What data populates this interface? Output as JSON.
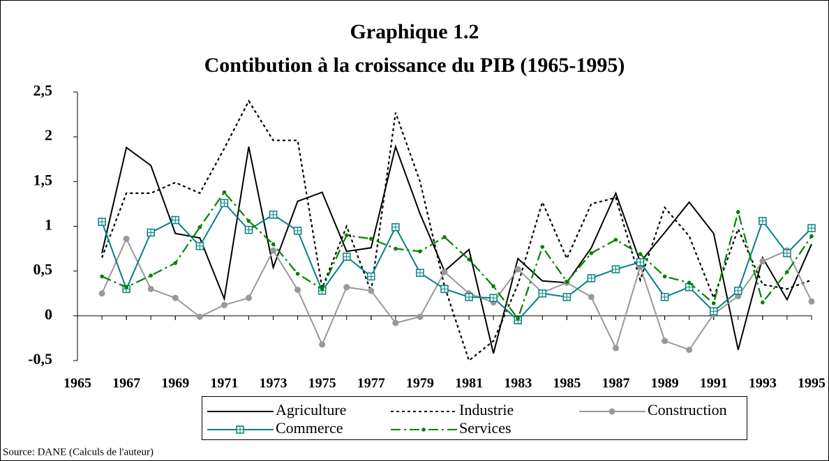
{
  "chart_data": {
    "type": "line",
    "title": "Graphique 1.2",
    "subtitle": "Contibution à la croissance du PIB (1965-1995)",
    "source": "Source: DANE (Calculs de l'auteur)",
    "x": [
      1966,
      1967,
      1968,
      1969,
      1970,
      1971,
      1972,
      1973,
      1974,
      1975,
      1976,
      1977,
      1978,
      1979,
      1980,
      1981,
      1982,
      1983,
      1984,
      1985,
      1986,
      1987,
      1988,
      1989,
      1990,
      1991,
      1992,
      1993,
      1994,
      1995
    ],
    "xlim": [
      1965,
      1995
    ],
    "xticks": [
      1965,
      1967,
      1969,
      1971,
      1973,
      1975,
      1977,
      1979,
      1981,
      1983,
      1985,
      1987,
      1989,
      1991,
      1993,
      1995
    ],
    "ylim": [
      -0.5,
      2.5
    ],
    "yticks": [
      {
        "value": -0.5,
        "label": "-0,5"
      },
      0,
      {
        "value": 0.5,
        "label": "0,5"
      },
      1,
      {
        "value": 1.5,
        "label": "1,5"
      },
      2,
      {
        "value": 2.5,
        "label": "2,5"
      }
    ],
    "grid": false,
    "series": [
      {
        "name": "Agriculture",
        "color": "#000000",
        "line_style": "solid",
        "marker": "none",
        "values": [
          0.7,
          1.88,
          1.68,
          0.92,
          0.87,
          0.19,
          1.89,
          0.54,
          1.28,
          1.38,
          0.72,
          0.76,
          1.89,
          1.14,
          0.5,
          0.74,
          -0.42,
          0.64,
          0.39,
          0.37,
          0.76,
          1.37,
          0.6,
          0.93,
          1.27,
          0.92,
          -0.38,
          0.65,
          0.18,
          0.8
        ]
      },
      {
        "name": "Industrie",
        "color": "#000000",
        "line_style": "dotted",
        "marker": "none",
        "values": [
          0.65,
          1.37,
          1.37,
          1.49,
          1.37,
          1.87,
          2.4,
          1.96,
          1.96,
          0.31,
          1.0,
          0.27,
          2.27,
          1.5,
          0.33,
          -0.5,
          -0.28,
          0.35,
          1.27,
          0.64,
          1.25,
          1.32,
          0.4,
          1.21,
          0.89,
          0.2,
          0.97,
          0.35,
          0.3,
          0.4
        ]
      },
      {
        "name": "Construction",
        "color": "#999999",
        "line_style": "solid",
        "marker": "circle",
        "values": [
          0.25,
          0.86,
          0.3,
          0.2,
          -0.01,
          0.12,
          0.2,
          0.73,
          0.29,
          -0.32,
          0.32,
          0.28,
          -0.08,
          -0.01,
          0.49,
          0.25,
          0.15,
          0.52,
          0.26,
          0.37,
          0.21,
          -0.36,
          0.55,
          -0.28,
          -0.38,
          0.02,
          0.22,
          0.61,
          0.73,
          0.16
        ]
      },
      {
        "name": "Commerce",
        "color": "#008080",
        "line_style": "solid",
        "marker": "square",
        "values": [
          1.05,
          0.3,
          0.93,
          1.07,
          0.78,
          1.26,
          0.96,
          1.13,
          0.95,
          0.28,
          0.66,
          0.44,
          0.99,
          0.48,
          0.3,
          0.21,
          0.2,
          -0.05,
          0.25,
          0.21,
          0.42,
          0.52,
          0.6,
          0.21,
          0.32,
          0.05,
          0.28,
          1.06,
          0.7,
          0.98
        ]
      },
      {
        "name": "Services",
        "color": "#008000",
        "line_style": "dash-dot",
        "marker": "dot",
        "values": [
          0.44,
          0.32,
          0.45,
          0.59,
          0.99,
          1.38,
          1.06,
          0.8,
          0.47,
          0.3,
          0.9,
          0.86,
          0.75,
          0.72,
          0.88,
          0.63,
          0.33,
          -0.03,
          0.77,
          0.38,
          0.7,
          0.85,
          0.69,
          0.44,
          0.37,
          0.14,
          1.16,
          0.15,
          0.49,
          0.89
        ]
      }
    ]
  }
}
